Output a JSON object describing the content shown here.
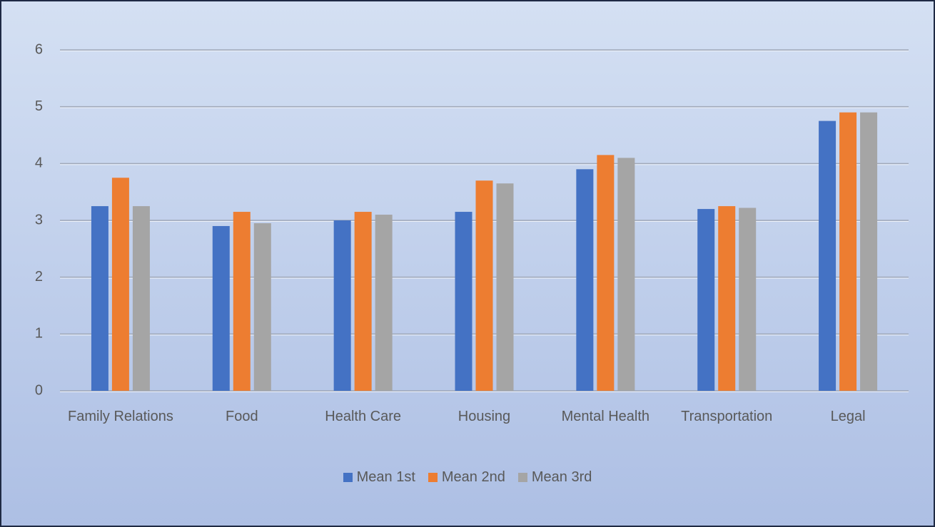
{
  "chart_data": {
    "type": "bar",
    "categories": [
      "Family Relations",
      "Food",
      "Health Care",
      "Housing",
      "Mental Health",
      "Transportation",
      "Legal"
    ],
    "series": [
      {
        "name": "Mean 1st",
        "color": "#4472c4",
        "values": [
          3.25,
          2.9,
          3.0,
          3.15,
          3.9,
          3.2,
          4.75
        ]
      },
      {
        "name": "Mean 2nd",
        "color": "#ed7d31",
        "values": [
          3.75,
          3.15,
          3.15,
          3.7,
          4.15,
          3.25,
          4.9
        ]
      },
      {
        "name": "Mean 3rd",
        "color": "#a5a5a5",
        "values": [
          3.25,
          2.95,
          3.1,
          3.65,
          4.1,
          3.22,
          4.9
        ]
      }
    ],
    "ylim": [
      0,
      6
    ],
    "yticks": [
      0,
      1,
      2,
      3,
      4,
      5,
      6
    ],
    "grid": true,
    "legend": "bottom"
  }
}
